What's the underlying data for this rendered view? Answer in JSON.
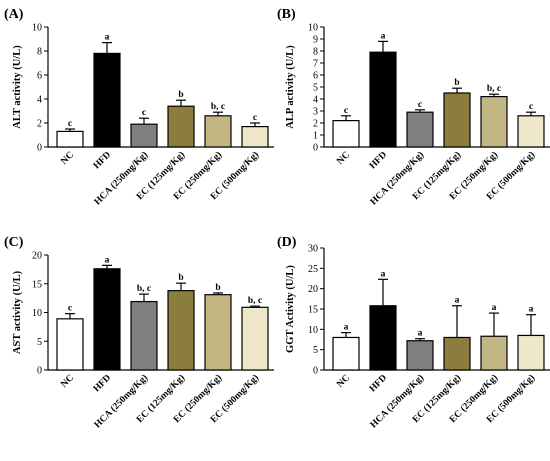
{
  "chart_data": [
    {
      "type": "bar",
      "panel_label": "(A)",
      "ylabel": "ALT activity (U/L)",
      "categories": [
        "NC",
        "HFD",
        "HCA (250mg/Kg)",
        "EC (125mg/Kg)",
        "EC (250mg/Kg)",
        "EC (500mg/Kg)"
      ],
      "values": [
        1.3,
        7.8,
        1.9,
        3.4,
        2.6,
        1.7
      ],
      "errors": [
        0.2,
        0.9,
        0.5,
        0.5,
        0.3,
        0.3
      ],
      "significance": [
        "c",
        "a",
        "c",
        "b",
        "b, c",
        "c"
      ],
      "ylim": [
        0,
        10
      ],
      "yticks": [
        0,
        2,
        4,
        6,
        8,
        10
      ],
      "colors": [
        "#ffffff",
        "#000000",
        "#808080",
        "#8b7d3e",
        "#c2b683",
        "#efe7c9"
      ]
    },
    {
      "type": "bar",
      "panel_label": "(B)",
      "ylabel": "ALP activity (U/L)",
      "categories": [
        "NC",
        "HFD",
        "HCA (250mg/Kg)",
        "EC (125mg/Kg)",
        "EC (250mg/Kg)",
        "EC (500mg/Kg)"
      ],
      "values": [
        2.2,
        7.9,
        2.9,
        4.5,
        4.2,
        2.6
      ],
      "errors": [
        0.4,
        0.9,
        0.2,
        0.4,
        0.2,
        0.3
      ],
      "significance": [
        "c",
        "a",
        "c",
        "b",
        "b, c",
        "c"
      ],
      "ylim": [
        0,
        10
      ],
      "yticks": [
        0,
        1,
        2,
        3,
        4,
        5,
        6,
        7,
        8,
        9,
        10
      ],
      "colors": [
        "#ffffff",
        "#000000",
        "#808080",
        "#8b7d3e",
        "#c2b683",
        "#efe7c9"
      ]
    },
    {
      "type": "bar",
      "panel_label": "(C)",
      "ylabel": "AST activity (U/L)",
      "categories": [
        "NC",
        "HFD",
        "HCA (250mg/Kg)",
        "EC (125mg/Kg)",
        "EC (250mg/Kg)",
        "EC (500mg/Kg)"
      ],
      "values": [
        8.9,
        17.6,
        11.9,
        13.8,
        13.1,
        10.9
      ],
      "errors": [
        0.9,
        0.6,
        1.3,
        1.3,
        0.3,
        0.2
      ],
      "significance": [
        "c",
        "a",
        "b, c",
        "b",
        "b",
        "b, c"
      ],
      "ylim": [
        0,
        20
      ],
      "yticks": [
        0,
        5,
        10,
        15,
        20
      ],
      "colors": [
        "#ffffff",
        "#000000",
        "#808080",
        "#8b7d3e",
        "#c2b683",
        "#efe7c9"
      ]
    },
    {
      "type": "bar",
      "panel_label": "(D)",
      "ylabel": "GGT Activity (U/L)",
      "categories": [
        "NC",
        "HFD",
        "HCA (250mg/Kg)",
        "EC (125mg/Kg)",
        "EC (250mg/Kg)",
        "EC (500mg/Kg)"
      ],
      "values": [
        8.0,
        15.8,
        7.2,
        8.0,
        8.3,
        8.5
      ],
      "errors": [
        1.2,
        6.5,
        0.5,
        7.8,
        5.7,
        5.1
      ],
      "significance": [
        "a",
        "a",
        "a",
        "a",
        "a",
        "a"
      ],
      "ylim": [
        0,
        30
      ],
      "yticks": [
        0,
        5,
        10,
        15,
        20,
        25,
        30
      ],
      "colors": [
        "#ffffff",
        "#000000",
        "#808080",
        "#8b7d3e",
        "#c2b683",
        "#efe7c9"
      ]
    }
  ]
}
